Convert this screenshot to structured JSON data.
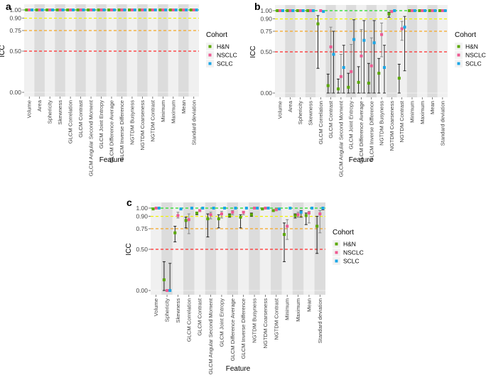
{
  "legend": {
    "title": "Cohort",
    "entries": [
      "H&N",
      "NSCLC",
      "SCLC"
    ]
  },
  "colors": {
    "H&N": "#5aa800",
    "NSCLC": "#ee5a92",
    "SCLC": "#1aa6e6"
  },
  "ref_lines": [
    {
      "value": 1.0,
      "color": "#22dd22"
    },
    {
      "value": 0.9,
      "color": "#f2f200"
    },
    {
      "value": 0.75,
      "color": "#f5a623"
    },
    {
      "value": 0.5,
      "color": "#ff2a2a"
    }
  ],
  "chart_data": [
    {
      "type": "scatter",
      "panel": "a",
      "xlabel": "Feature",
      "ylabel": "ICC",
      "ylim": [
        0,
        1
      ],
      "yticks": [
        "0.00",
        "0.50",
        "0.75",
        "0.90",
        "1.00"
      ],
      "ytick_values": [
        0,
        0.5,
        0.75,
        0.9,
        1.0
      ],
      "categories": [
        "Volume",
        "Area",
        "Sphericity",
        "Skewness",
        "GLCM Correlation",
        "GLCM Contrast",
        "GLCM Angular Second Moment",
        "GLCM Joint Entropy",
        "GLCM Difference Average",
        "GLCM Inverse Difference",
        "NGTDM Busyness",
        "NGTDM Coarseness",
        "NGTDM Contrast",
        "Minimum",
        "Maximum",
        "Mean",
        "Standard deviation"
      ],
      "series": [
        {
          "name": "H&N",
          "values": [
            1,
            1,
            1,
            1,
            1,
            1,
            1,
            1,
            1,
            1,
            1,
            1,
            1,
            1,
            1,
            1,
            1
          ],
          "ci": []
        },
        {
          "name": "NSCLC",
          "values": [
            1,
            1,
            1,
            1,
            1,
            1,
            1,
            1,
            1,
            1,
            1,
            1,
            1,
            1,
            1,
            1,
            1
          ],
          "ci": []
        },
        {
          "name": "SCLC",
          "values": [
            1,
            1,
            1,
            1,
            1,
            1,
            1,
            1,
            1,
            1,
            1,
            1,
            1,
            1,
            1,
            1,
            1
          ],
          "ci": []
        }
      ]
    },
    {
      "type": "scatter",
      "panel": "b",
      "xlabel": "Feature",
      "ylabel": "ICC",
      "ylim": [
        0,
        1
      ],
      "yticks": [
        "0.00",
        "0.50",
        "0.75",
        "0.90",
        "1.00"
      ],
      "ytick_values": [
        0,
        0.5,
        0.75,
        0.9,
        1.0
      ],
      "categories": [
        "Volume",
        "Area",
        "Sphericity",
        "Skewness",
        "GLCM Correlation",
        "GLCM Contrast",
        "GLCM Angular Second Moment",
        "GLCM Joint Entropy",
        "GLCM Difference Average",
        "GLCM Inverse Difference",
        "NGTDM Busyness",
        "NGTDM Coarseness",
        "NGTDM Contrast",
        "Minimum",
        "Maximum",
        "Mean",
        "Standard deviation"
      ],
      "series": [
        {
          "name": "H&N",
          "values": [
            1,
            1,
            1,
            1,
            0.84,
            0.09,
            0.05,
            0.07,
            0.13,
            0.12,
            0.24,
            0.96,
            0.18,
            1,
            1,
            1,
            1
          ],
          "ci": [
            null,
            null,
            null,
            null,
            [
              0.3,
              0.94
            ],
            [
              0,
              0.23
            ],
            [
              0,
              0.17
            ],
            [
              0,
              0.24
            ],
            [
              0,
              0.32
            ],
            [
              0,
              0.36
            ],
            [
              0,
              0.42
            ],
            [
              0.92,
              0.98
            ],
            [
              0,
              0.35
            ],
            null,
            null,
            null,
            null
          ]
        },
        {
          "name": "NSCLC",
          "values": [
            1,
            1,
            1,
            1,
            1,
            0.56,
            0.2,
            0.26,
            0.45,
            0.33,
            0.71,
            0.99,
            0.78,
            1,
            1,
            1,
            1
          ],
          "ci": [
            null,
            null,
            null,
            null,
            null,
            [
              0,
              0.8
            ],
            [
              0,
              0.47
            ],
            [
              0,
              0.59
            ],
            [
              0,
              0.77
            ],
            [
              0,
              0.67
            ],
            [
              0.44,
              0.85
            ],
            null,
            [
              0.64,
              0.87
            ],
            null,
            null,
            null,
            null
          ]
        },
        {
          "name": "SCLC",
          "values": [
            1,
            1,
            1,
            1,
            0.99,
            0.47,
            0.31,
            0.65,
            0.64,
            0.61,
            0.31,
            1,
            0.8,
            1,
            1,
            1,
            1
          ],
          "ci": [
            null,
            null,
            null,
            null,
            null,
            [
              0,
              0.75
            ],
            [
              0,
              0.58
            ],
            [
              0,
              0.89
            ],
            [
              0,
              0.88
            ],
            [
              0,
              0.88
            ],
            [
              0,
              0.58
            ],
            null,
            [
              0.27,
              0.93
            ],
            null,
            null,
            null,
            null
          ]
        }
      ]
    },
    {
      "type": "scatter",
      "panel": "c",
      "xlabel": "Feature",
      "ylabel": "ICC",
      "ylim": [
        0,
        1
      ],
      "yticks": [
        "0.00",
        "0.50",
        "0.75",
        "0.90",
        "1.00"
      ],
      "ytick_values": [
        0,
        0.5,
        0.75,
        0.9,
        1.0
      ],
      "categories": [
        "Volume",
        "Sphericity",
        "Skewness",
        "GLCM Correlation",
        "GLCM Contrast",
        "GLCM Angular Second Moment",
        "GLCM Joint Entropy",
        "GLCM Difference Average",
        "GLCM Inverse Difference",
        "NGTDM Busyness",
        "NGTDM Coarseness",
        "NGTDM Contrast",
        "Minimum",
        "Maximum",
        "Mean",
        "Standard deviation"
      ],
      "series": [
        {
          "name": "H&N",
          "values": [
            0.99,
            0.13,
            0.7,
            0.85,
            0.94,
            0.87,
            0.87,
            0.91,
            0.89,
            0.92,
            0.99,
            0.97,
            0.68,
            0.91,
            0.91,
            0.78
          ],
          "ci": [
            null,
            [
              0,
              0.35
            ],
            [
              0.59,
              0.78
            ],
            [
              0.76,
              0.89
            ],
            [
              0.92,
              0.95
            ],
            [
              0.65,
              0.93
            ],
            [
              0.76,
              0.92
            ],
            [
              0.89,
              0.93
            ],
            [
              0.76,
              0.92
            ],
            [
              0.9,
              0.94
            ],
            [
              0.98,
              1.0
            ],
            [
              0.96,
              0.98
            ],
            [
              0.35,
              0.82
            ],
            [
              0.88,
              0.93
            ],
            [
              0.8,
              0.94
            ],
            [
              0.45,
              0.9
            ]
          ]
        },
        {
          "name": "NSCLC",
          "values": [
            1,
            0,
            0.91,
            0.86,
            0.97,
            0.92,
            0.93,
            0.95,
            0.95,
            1,
            1,
            0.98,
            0.78,
            0.92,
            0.94,
            0.93
          ],
          "ci": [
            null,
            null,
            [
              0.88,
              0.95
            ],
            [
              0.69,
              0.93
            ],
            [
              0.96,
              0.98
            ],
            [
              0.87,
              0.95
            ],
            [
              0.88,
              0.96
            ],
            [
              0.92,
              0.97
            ],
            [
              0.92,
              0.96
            ],
            null,
            null,
            [
              0.97,
              0.99
            ],
            [
              0.62,
              0.86
            ],
            [
              0.89,
              0.95
            ],
            [
              0.82,
              0.96
            ],
            [
              0.7,
              0.97
            ]
          ]
        },
        {
          "name": "SCLC",
          "values": [
            1,
            0,
            0.99,
            1,
            1,
            1,
            1,
            1,
            1,
            1,
            1,
            0.99,
            1,
            0.95,
            1,
            1
          ],
          "ci": [
            null,
            [
              0,
              0.33
            ],
            [
              0.98,
              1.0
            ],
            null,
            null,
            null,
            null,
            null,
            null,
            null,
            null,
            [
              0.98,
              1.0
            ],
            null,
            [
              0.89,
              0.97
            ],
            null,
            [
              0.98,
              1.0
            ]
          ]
        }
      ]
    }
  ]
}
